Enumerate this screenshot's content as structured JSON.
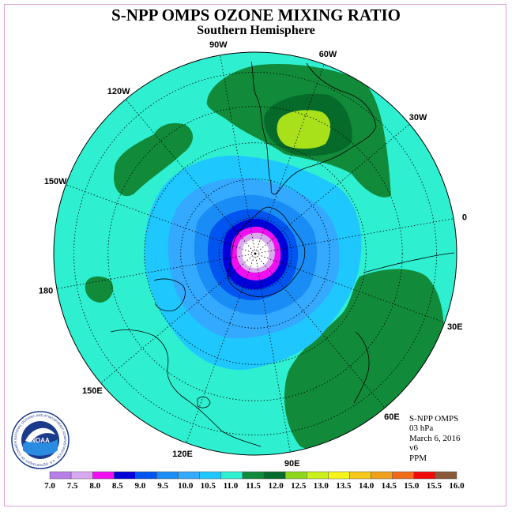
{
  "title": "S-NPP OMPS OZONE MIXING RATIO",
  "subtitle": "Southern Hemisphere",
  "longitude_labels": [
    "90W",
    "60W",
    "30W",
    "0",
    "30E",
    "60E",
    "90E",
    "120E",
    "150E",
    "180",
    "150W",
    "120W"
  ],
  "info": {
    "product": "S-NPP OMPS",
    "level": "03 hPa",
    "date": "March 6, 2016",
    "version": "v6",
    "units": "PPM"
  },
  "logo": {
    "text": "NOAA",
    "ring_text": "NATIONAL OCEANIC AND ATMOSPHERIC ADMINISTRATION · U.S. DEPARTMENT OF COMMERCE"
  },
  "legend": {
    "ticks": [
      "7.0",
      "7.5",
      "8.0",
      "8.5",
      "9.0",
      "9.5",
      "10.0",
      "10.5",
      "11.0",
      "11.5",
      "12.0",
      "12.5",
      "13.0",
      "13.5",
      "14.0",
      "14.5",
      "15.0",
      "15.5",
      "16.0"
    ],
    "colors": [
      "#b77ee8",
      "#d9a9f0",
      "#f00ff0",
      "#0000d8",
      "#0055f0",
      "#1a8cf5",
      "#33aaff",
      "#1ec8ff",
      "#2ef0d0",
      "#118a3a",
      "#066a2a",
      "#8fd61a",
      "#c9f01a",
      "#f5f51a",
      "#f5c81a",
      "#f0a01a",
      "#f06a1a",
      "#f00a0a",
      "#8a5a3a"
    ]
  },
  "colors": {
    "background_field": "#2ef0d0",
    "high_ozone": "#118a3a",
    "peak_ozone": "#8fd61a",
    "low_ozone": "#0000d8"
  }
}
